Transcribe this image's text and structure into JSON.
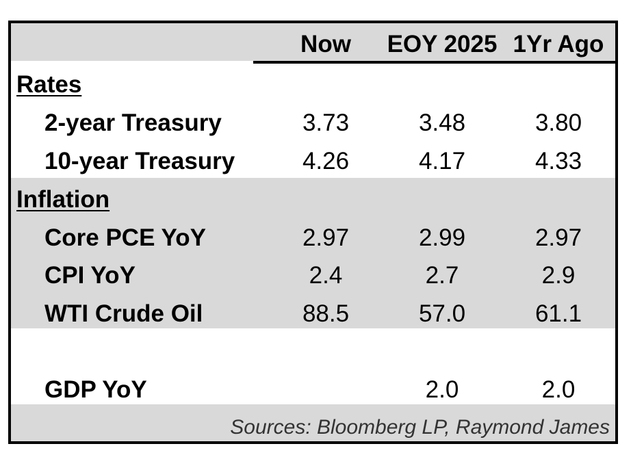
{
  "columns": [
    "Now",
    "EOY 2025",
    "1Yr Ago"
  ],
  "sections": [
    {
      "title": "Rates",
      "rows": [
        {
          "label": "2-year Treasury",
          "values": [
            "3.73",
            "3.48",
            "3.80"
          ]
        },
        {
          "label": "10-year Treasury",
          "values": [
            "4.26",
            "4.17",
            "4.33"
          ]
        }
      ]
    },
    {
      "title": "Inflation",
      "rows": [
        {
          "label": "Core PCE YoY",
          "values": [
            "2.97",
            "2.99",
            "2.97"
          ]
        },
        {
          "label": "CPI YoY",
          "values": [
            "2.4",
            "2.7",
            "2.9"
          ]
        },
        {
          "label": "WTI Crude Oil",
          "values": [
            "88.5",
            "57.0",
            "61.1"
          ]
        }
      ]
    }
  ],
  "gdp_row": {
    "label": "GDP YoY",
    "values": [
      "",
      "2.0",
      "2.0"
    ]
  },
  "footer": {
    "sources": "Sources: Bloomberg LP, Raymond James"
  }
}
